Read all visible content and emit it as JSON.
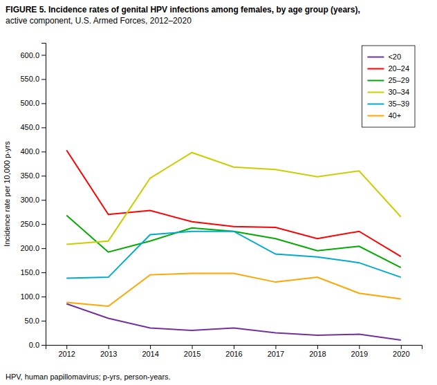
{
  "chart_data": {
    "type": "line",
    "title": "FIGURE 5. Incidence rates of genital HPV infections among females, by age group (years),",
    "subtitle": "active component, U.S. Armed Forces, 2012–2020",
    "annotations": [
      "HPV, human papillomavirus; p-yrs, person-years."
    ],
    "y_label": "Incidence rate per 10,000 p-yrs",
    "x": [
      2012,
      2013,
      2014,
      2015,
      2016,
      2017,
      2018,
      2019,
      2020
    ],
    "series": [
      {
        "name": "<20",
        "color": "#7030A0",
        "values": [
          85,
          55,
          35,
          30,
          35,
          25,
          20,
          22,
          10
        ]
      },
      {
        "name": "20–24",
        "color": "#FF0000",
        "values": [
          403,
          270,
          278,
          255,
          245,
          243,
          220,
          235,
          183
        ]
      },
      {
        "name": "25–29",
        "color": "#00AA00",
        "values": [
          268,
          192,
          215,
          242,
          235,
          220,
          195,
          204,
          160
        ]
      },
      {
        "name": "30–34",
        "color": "#CCCC00",
        "values": [
          208,
          215,
          345,
          398,
          368,
          363,
          348,
          360,
          265
        ]
      },
      {
        "name": "35–39",
        "color": "#00AACC",
        "values": [
          138,
          140,
          228,
          235,
          235,
          188,
          182,
          170,
          140
        ]
      },
      {
        "name": "40+",
        "color": "#FFA500",
        "values": [
          88,
          80,
          145,
          148,
          148,
          130,
          140,
          107,
          95
        ]
      }
    ],
    "xlim": [
      2011.5,
      2020.5
    ],
    "xticks": [
      2012,
      2013,
      2014,
      2015,
      2016,
      2017,
      2018,
      2019,
      2020
    ],
    "ylim": [
      0,
      625
    ],
    "yticks": [
      {
        "value": 0,
        "label": "0.0"
      },
      {
        "value": 50,
        "label": "50.0"
      },
      {
        "value": 100,
        "label": "100.0"
      },
      {
        "value": 150,
        "label": "150.0"
      },
      {
        "value": 200,
        "label": "200.0"
      },
      {
        "value": 250,
        "label": "250.0"
      },
      {
        "value": 300,
        "label": "300.0"
      },
      {
        "value": 350,
        "label": "350.0"
      },
      {
        "value": 400,
        "label": "400.0"
      },
      {
        "value": 450,
        "label": "450.0"
      },
      {
        "value": 500,
        "label": "500.0"
      },
      {
        "value": 550,
        "label": "550.0"
      },
      {
        "value": 600,
        "label": "600.0"
      }
    ],
    "grid": false,
    "legend": "upper right"
  }
}
